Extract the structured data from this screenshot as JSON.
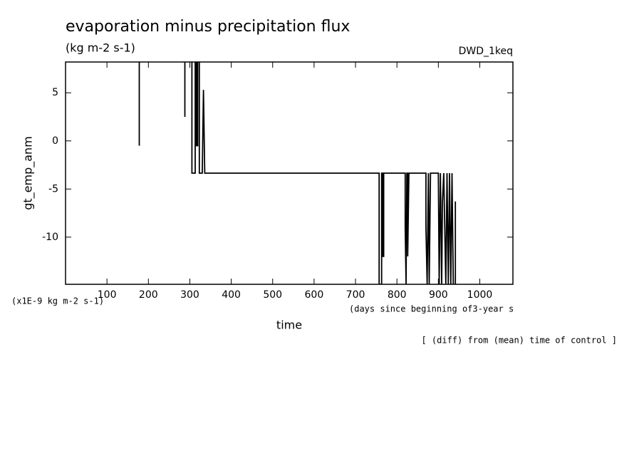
{
  "chart_data": {
    "type": "line",
    "title": "evaporation minus precipitation flux",
    "subtitle": "(kg m-2 s-1)",
    "run_label": "DWD_1keq",
    "ylabel": "gt_emp_anm",
    "xlabel": "time",
    "y_unit_label": "(x1E-9 kg m-2 s-1)",
    "x_unit_label": "(days since beginning of3-year s",
    "footnote": "[ (diff) from (mean) time of control ]",
    "color": "#000000",
    "xlim": [
      0,
      1080
    ],
    "ylim": [
      -14.9,
      8.2
    ],
    "xticks": [
      100,
      200,
      300,
      400,
      500,
      600,
      700,
      800,
      900,
      1000
    ],
    "yticks": [
      5,
      0,
      -5,
      -10
    ],
    "x": [
      178,
      178,
      null,
      288,
      288,
      null,
      305,
      305,
      313,
      313,
      316,
      316,
      319,
      319,
      323,
      323,
      330,
      333,
      336,
      757,
      757,
      763,
      763,
      765,
      765,
      768,
      768,
      820,
      820,
      822,
      824,
      826,
      826,
      829,
      870,
      870,
      873,
      876,
      878,
      881,
      900,
      902,
      905,
      908,
      910,
      913,
      918,
      921,
      924,
      927,
      930,
      933,
      936,
      null,
      941,
      941
    ],
    "values": [
      8.2,
      -0.5,
      null,
      8.2,
      2.5,
      null,
      8.2,
      -3.35,
      -3.35,
      8.2,
      8.2,
      -0.5,
      -0.5,
      8.2,
      8.2,
      -3.35,
      -3.35,
      5.3,
      -3.35,
      -3.35,
      -14.9,
      -14.9,
      -3.35,
      -3.35,
      -12,
      -12,
      -3.35,
      -3.35,
      -9,
      -14.9,
      -3.35,
      -3.35,
      -12,
      -3.35,
      -3.35,
      -9,
      -14.9,
      -3.35,
      -14.9,
      -3.35,
      -3.35,
      -14.9,
      -3.35,
      -14.9,
      -6.3,
      -3.35,
      -14.9,
      -3.35,
      -14.9,
      -3.35,
      -14.9,
      -3.35,
      -14.9,
      null,
      -6.3,
      -14.9
    ]
  }
}
